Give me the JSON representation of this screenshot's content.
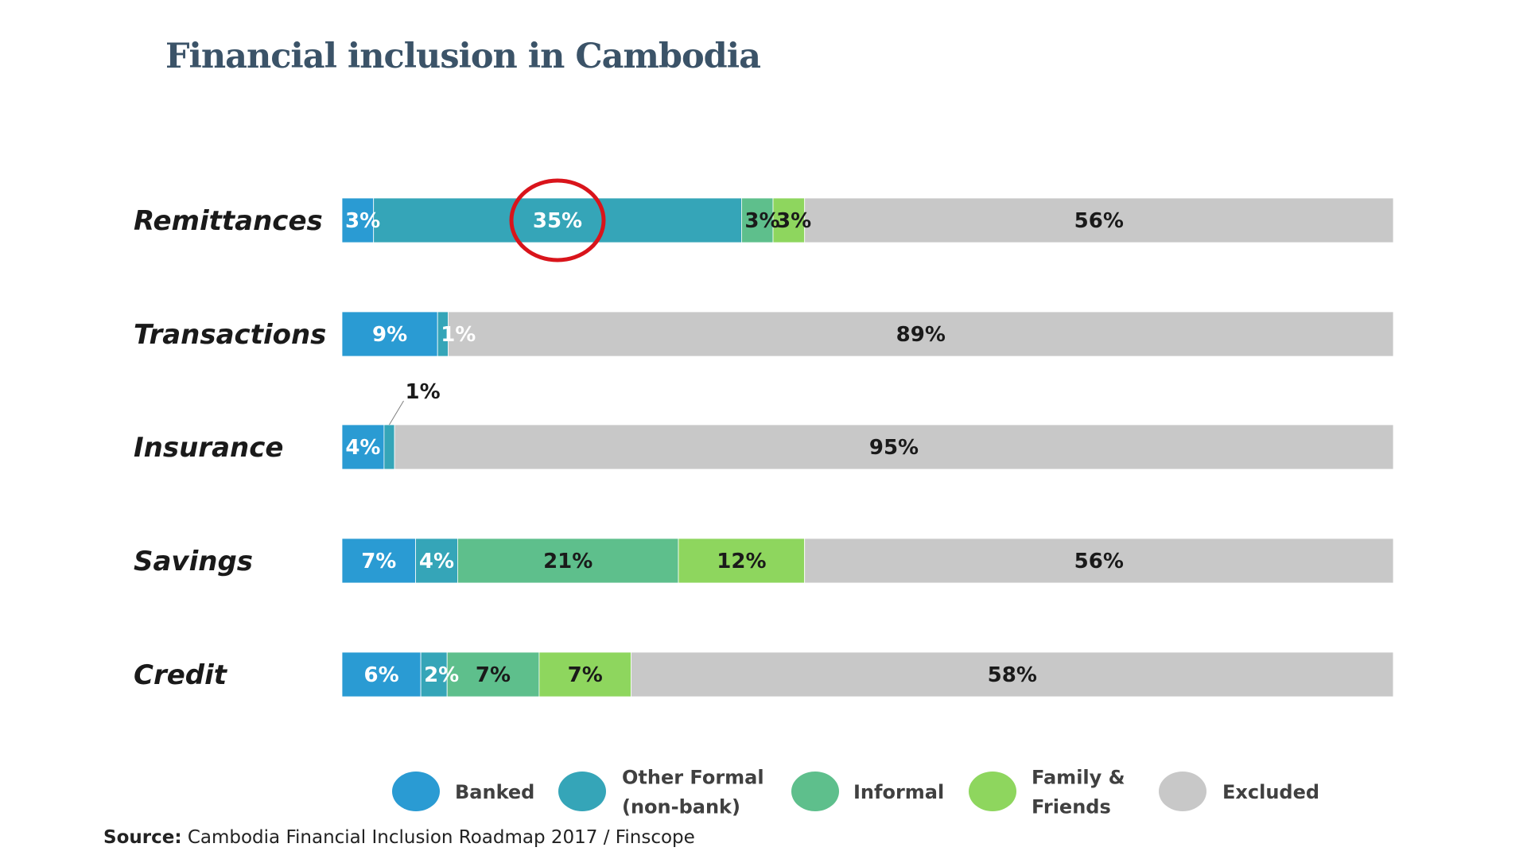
{
  "title": "Financial inclusion in Cambodia",
  "source": {
    "label": "Source:",
    "text": " Cambodia Financial Inclusion Roadmap 2017 / Finscope"
  },
  "colors": {
    "Banked": "#2a9bd3",
    "Other Formal (non-bank)": "#35a5b8",
    "Informal": "#5ebf8c",
    "Family & Friends": "#8ed65e",
    "Excluded": "#c8c8c8",
    "highlight": "#d9141b"
  },
  "chart_data": {
    "type": "bar",
    "orientation": "horizontal",
    "stacked": true,
    "title": "Financial inclusion in Cambodia",
    "categories": [
      "Remittances",
      "Transactions",
      "Insurance",
      "Savings",
      "Credit"
    ],
    "series": [
      {
        "name": "Banked",
        "values": [
          3,
          9,
          4,
          7,
          6
        ],
        "labels": [
          "3%",
          "9%",
          "4%",
          "7%",
          "6%"
        ]
      },
      {
        "name": "Other Formal (non-bank)",
        "values": [
          35,
          1,
          1,
          4,
          2
        ],
        "labels": [
          "35%",
          "1%",
          "1%",
          "4%",
          "2%"
        ]
      },
      {
        "name": "Informal",
        "values": [
          3,
          0,
          0,
          21,
          7
        ],
        "labels": [
          "3%",
          "",
          "",
          "21%",
          "7%"
        ]
      },
      {
        "name": "Family & Friends",
        "values": [
          3,
          0,
          0,
          12,
          7
        ],
        "labels": [
          "3%",
          "",
          "",
          "12%",
          "7%"
        ]
      },
      {
        "name": "Excluded",
        "values": [
          56,
          89,
          95,
          56,
          58
        ],
        "labels": [
          "56%",
          "89%",
          "95%",
          "56%",
          "58%"
        ]
      }
    ],
    "callouts": [
      {
        "category": "Insurance",
        "series": "Other Formal (non-bank)",
        "label": "1%"
      }
    ],
    "highlight": {
      "category": "Remittances",
      "series": "Other Formal (non-bank)",
      "shape": "circle"
    },
    "legend": {
      "position": "bottom",
      "items": [
        {
          "series": "Banked",
          "lines": [
            "Banked"
          ]
        },
        {
          "series": "Other Formal (non-bank)",
          "lines": [
            "Other Formal",
            "(non-bank)"
          ]
        },
        {
          "series": "Informal",
          "lines": [
            "Informal"
          ]
        },
        {
          "series": "Family & Friends",
          "lines": [
            "Family &",
            "Friends"
          ]
        },
        {
          "series": "Excluded",
          "lines": [
            "Excluded"
          ]
        }
      ]
    },
    "xlim": [
      0,
      100
    ],
    "grid": false
  }
}
